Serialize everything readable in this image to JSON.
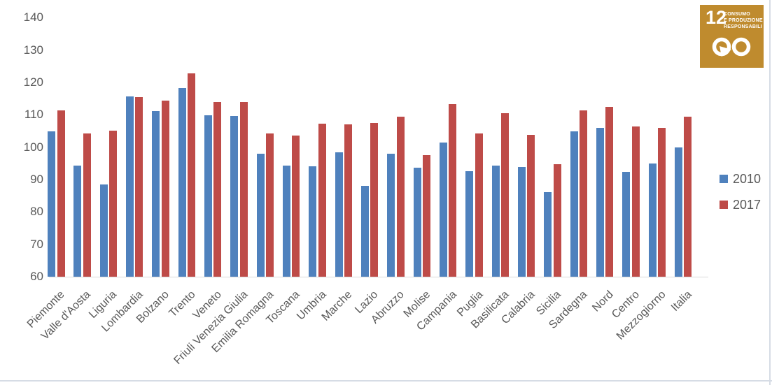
{
  "chart_data": {
    "type": "bar",
    "title": "",
    "xlabel": "",
    "ylabel": "",
    "categories": [
      "Piemonte",
      "Valle d'Aosta",
      "Liguria",
      "Lombardia",
      "Bolzano",
      "Trento",
      "Veneto",
      "Friuli Venezia Giulia",
      "Emilia Romagna",
      "Toscana",
      "Umbria",
      "Marche",
      "Lazio",
      "Abruzzo",
      "Molise",
      "Campania",
      "Puglia",
      "Basilicata",
      "Calabria",
      "Sicilia",
      "Sardegna",
      "Nord",
      "Centro",
      "Mezzogiorno",
      "Italia"
    ],
    "series": [
      {
        "name": "2010",
        "color": "#4F81BD",
        "values": [
          104.8,
          94.4,
          88.4,
          115.7,
          111.1,
          118.3,
          109.9,
          109.6,
          97.9,
          94.3,
          94.1,
          98.4,
          88.0,
          98.0,
          93.6,
          101.5,
          92.6,
          94.4,
          93.9,
          86.2,
          104.8,
          105.9,
          92.4,
          94.9,
          100.0
        ]
      },
      {
        "name": "2017",
        "color": "#BE4B48",
        "values": [
          111.4,
          104.2,
          105.0,
          115.5,
          114.4,
          122.8,
          114.0,
          114.0,
          104.3,
          103.5,
          107.3,
          107.0,
          107.4,
          109.4,
          97.5,
          113.4,
          104.3,
          110.4,
          103.7,
          94.7,
          111.4,
          112.5,
          106.3,
          105.9,
          109.4
        ]
      }
    ],
    "ylim": [
      60,
      140
    ],
    "yticks": [
      60,
      70,
      80,
      90,
      100,
      110,
      120,
      130,
      140
    ],
    "grid": false,
    "legend_position": "right"
  },
  "legend": {
    "entries": [
      "2010",
      "2017"
    ]
  },
  "sdg_badge": {
    "number": "12",
    "line1": "CONSUMO",
    "line2": "E PRODUZIONE",
    "line3": "RESPONSABILI",
    "color": "#BF8B2E",
    "icon": "infinity-arrow-icon"
  },
  "colors": {
    "axis_line": "#D9D9D9",
    "tick_text": "#595959",
    "background": "#FFFFFF",
    "frame_border": "#D6DCE5"
  }
}
